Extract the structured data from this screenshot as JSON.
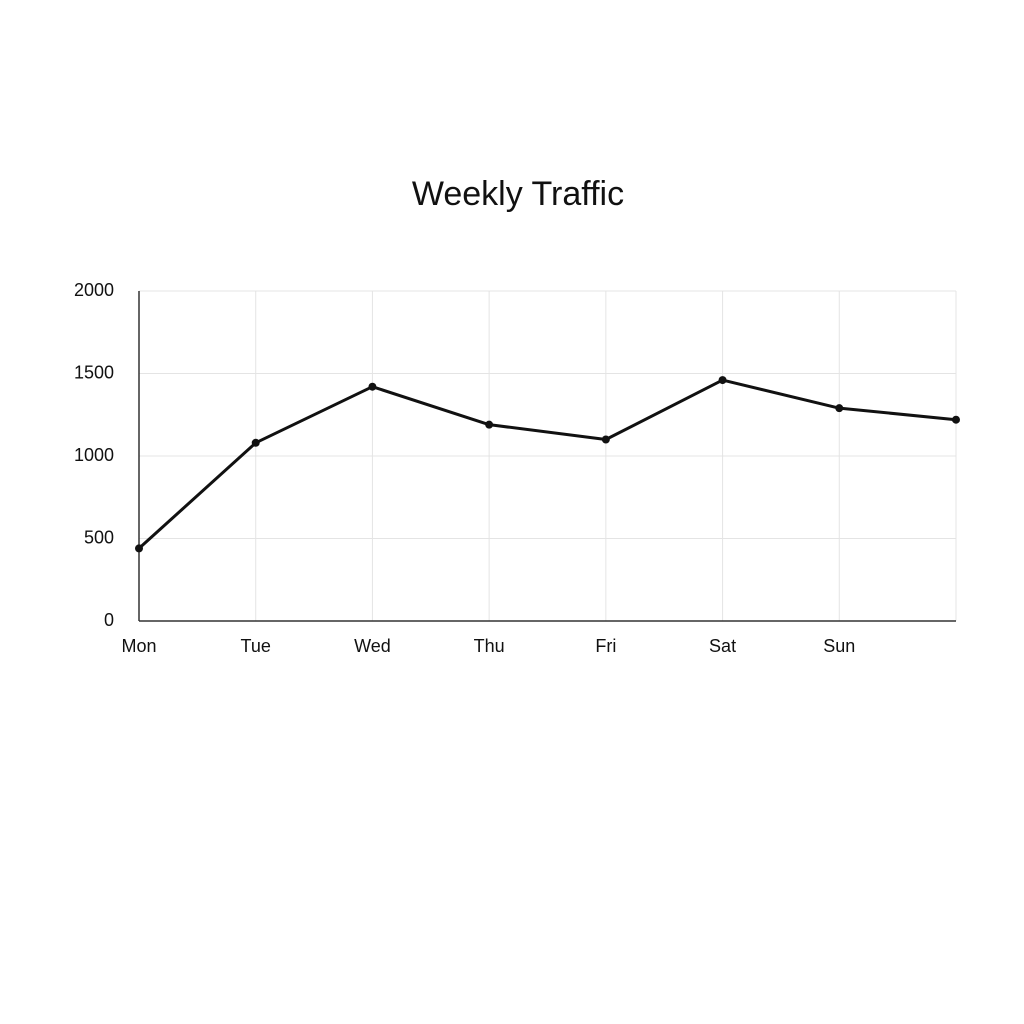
{
  "chart_data": {
    "type": "line",
    "title": "Weekly Traffic",
    "categories": [
      "Mon",
      "Tue",
      "Wed",
      "Thu",
      "Fri",
      "Sat",
      "Sun",
      null
    ],
    "series": [
      {
        "color": "#111111",
        "values": [
          440,
          1080,
          1420,
          1190,
          1100,
          1460,
          1290,
          1220
        ]
      }
    ],
    "ylim": [
      0,
      2000
    ],
    "yticks": [
      0,
      500,
      1000,
      1500,
      2000
    ],
    "grid": true
  }
}
